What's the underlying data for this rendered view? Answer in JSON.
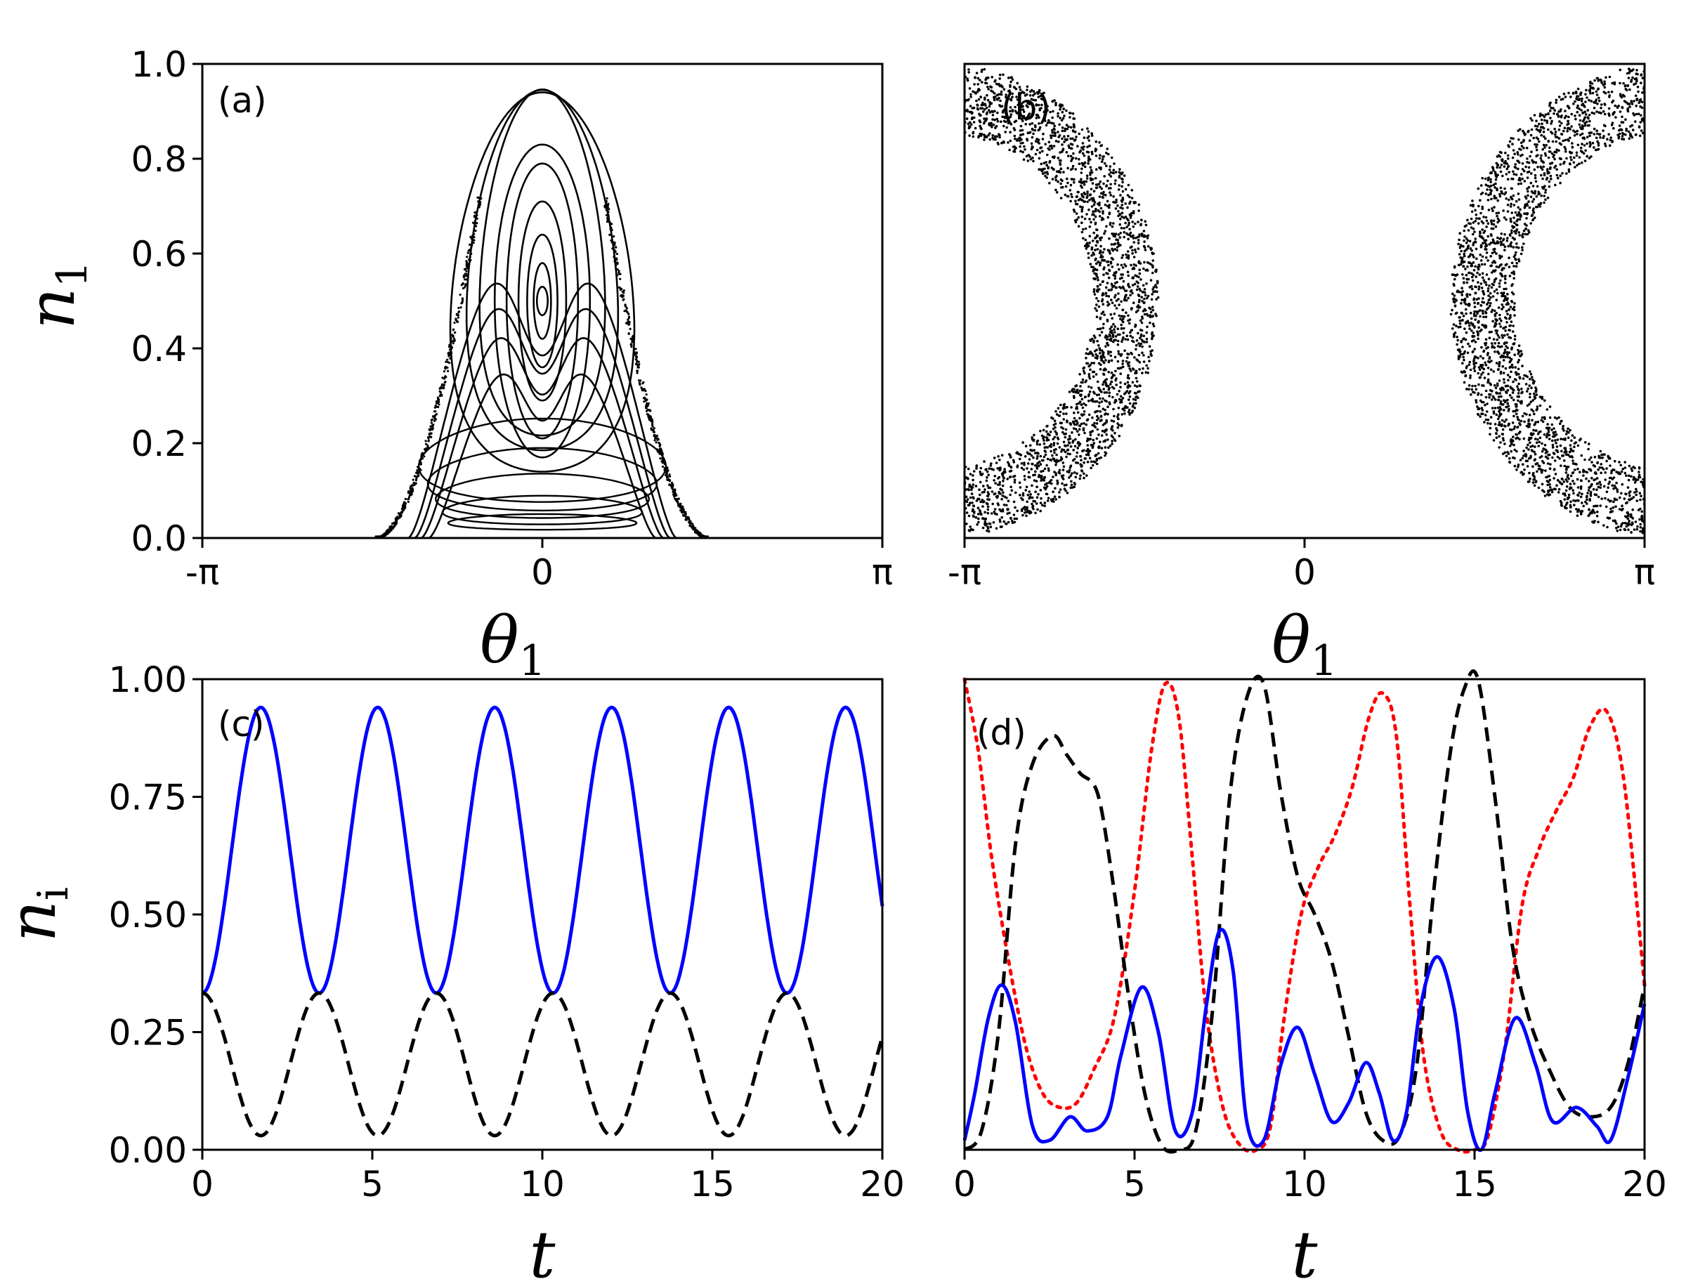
{
  "chart_data": [
    {
      "panel": "a",
      "label": "(a)",
      "type": "scatter",
      "description_kind": "poincare-section",
      "xlabel": "θ",
      "xlabel_sub": "1",
      "ylabel": "n",
      "ylabel_sub": "1",
      "xlim": [
        -3.1416,
        3.1416
      ],
      "ylim": [
        0,
        1
      ],
      "xticks": [
        "-π",
        "0",
        "π"
      ],
      "xtick_values": [
        -3.1416,
        0,
        3.1416
      ],
      "yticks": [
        "0.0",
        "0.2",
        "0.4",
        "0.6",
        "0.8",
        "1.0"
      ],
      "ytick_values": [
        0,
        0.2,
        0.4,
        0.6,
        0.8,
        1.0
      ],
      "color": "#000000",
      "orbits": [
        {
          "a": 0.05,
          "ctr": 0.5,
          "dy": 0.03
        },
        {
          "a": 0.08,
          "ctr": 0.5,
          "dy": 0.08
        },
        {
          "a": 0.14,
          "ctr": 0.5,
          "dy": 0.14
        },
        {
          "a": 0.22,
          "ctr": 0.5,
          "dy": 0.21
        },
        {
          "a": 0.33,
          "ctr": 0.5,
          "dy": 0.29
        },
        {
          "a": 0.44,
          "ctr": 0.5,
          "dy": 0.33
        },
        {
          "a": 0.58,
          "ctr": 0.49,
          "dy": 0.365
        },
        {
          "a": 0.7,
          "ctr": 0.47,
          "dy": 0.38
        },
        {
          "a": 0.85,
          "ctr": 0.44,
          "dy": 0.4
        }
      ],
      "separatrix_peaks": [
        {
          "peak": 0.45,
          "halfwidth": 1.05
        },
        {
          "peak": 0.55,
          "halfwidth": 1.12
        },
        {
          "peak": 0.63,
          "halfwidth": 1.18
        },
        {
          "peak": 0.7,
          "halfwidth": 1.24
        }
      ],
      "outer_envelope": {
        "peak": 0.72,
        "x_peak": 0.58,
        "x_end": 1.0
      }
    },
    {
      "panel": "b",
      "label": "(b)",
      "type": "scatter",
      "description_kind": "poincare-section-chaotic",
      "xlabel": "θ",
      "xlabel_sub": "1",
      "ylabel": "",
      "xlim": [
        -3.1416,
        3.1416
      ],
      "ylim": [
        0,
        1
      ],
      "xticks": [
        "-π",
        "0",
        "π"
      ],
      "xtick_values": [
        -3.1416,
        0,
        3.1416
      ],
      "yticks": [],
      "color": "#000000",
      "bands": [
        {
          "center_x": -3.4,
          "center_y": 0.5,
          "r_inner": 1.45,
          "r_outer": 2.05,
          "ry_scale": 0.245
        },
        {
          "center_x": 3.4,
          "center_y": 0.5,
          "r_inner": 1.45,
          "r_outer": 2.05,
          "ry_scale": 0.245
        }
      ]
    },
    {
      "panel": "c",
      "label": "(c)",
      "type": "line",
      "xlabel": "t",
      "ylabel": "n",
      "ylabel_sub": "i",
      "xlim": [
        0,
        20
      ],
      "ylim": [
        0,
        1
      ],
      "xticks": [
        "0",
        "5",
        "10",
        "15",
        "20"
      ],
      "xtick_values": [
        0,
        5,
        10,
        15,
        20
      ],
      "yticks": [
        "0.00",
        "0.25",
        "0.50",
        "0.75",
        "1.00"
      ],
      "ytick_values": [
        0,
        0.25,
        0.5,
        0.75,
        1.0
      ],
      "series": [
        {
          "style": "solid",
          "color": "#0000ff",
          "period": 3.44,
          "min": 0.333,
          "max": 0.94,
          "phase_start": "min"
        },
        {
          "style": "dashed",
          "color": "#000000",
          "period": 3.44,
          "min": 0.03,
          "max": 0.333,
          "phase_start": "max"
        }
      ]
    },
    {
      "panel": "d",
      "label": "(d)",
      "type": "line",
      "xlabel": "t",
      "ylabel": "",
      "xlim": [
        0,
        20
      ],
      "ylim": [
        0,
        1
      ],
      "xticks": [
        "0",
        "5",
        "10",
        "15",
        "20"
      ],
      "xtick_values": [
        0,
        5,
        10,
        15,
        20
      ],
      "yticks": [],
      "series": [
        {
          "style": "solid",
          "color": "#0000ff",
          "x": [
            0,
            0.3,
            0.7,
            1.1,
            1.5,
            2.0,
            2.5,
            3.1,
            3.6,
            4.2,
            4.6,
            5.2,
            5.7,
            6.2,
            6.7,
            7.1,
            7.5,
            7.9,
            8.3,
            8.8,
            9.3,
            9.8,
            10.3,
            10.8,
            11.3,
            11.8,
            12.2,
            12.6,
            13.0,
            13.4,
            13.9,
            14.4,
            14.8,
            15.2,
            15.6,
            16.2,
            16.8,
            17.3,
            18.0,
            18.6,
            19.0,
            19.5,
            20.0
          ],
          "y": [
            0.02,
            0.12,
            0.28,
            0.35,
            0.27,
            0.05,
            0.02,
            0.07,
            0.04,
            0.07,
            0.2,
            0.345,
            0.25,
            0.04,
            0.08,
            0.3,
            0.465,
            0.38,
            0.06,
            0.02,
            0.18,
            0.26,
            0.16,
            0.06,
            0.1,
            0.185,
            0.12,
            0.02,
            0.08,
            0.3,
            0.41,
            0.3,
            0.08,
            0.0,
            0.12,
            0.28,
            0.18,
            0.06,
            0.09,
            0.05,
            0.02,
            0.15,
            0.31
          ]
        },
        {
          "style": "dashed",
          "color": "#000000",
          "x": [
            0,
            0.5,
            1.0,
            1.5,
            2.0,
            2.6,
            3.0,
            3.4,
            3.9,
            4.3,
            4.8,
            5.3,
            5.8,
            6.3,
            6.8,
            7.3,
            7.8,
            8.3,
            8.8,
            9.3,
            9.8,
            10.3,
            10.8,
            11.3,
            11.8,
            12.3,
            12.8,
            13.3,
            13.8,
            14.3,
            14.7,
            15.1,
            15.6,
            16.1,
            16.6,
            17.2,
            17.8,
            18.4,
            19.0,
            19.5,
            20.0
          ],
          "y": [
            0.0,
            0.04,
            0.25,
            0.65,
            0.82,
            0.88,
            0.84,
            0.8,
            0.76,
            0.6,
            0.34,
            0.12,
            0.01,
            0.0,
            0.04,
            0.3,
            0.75,
            0.96,
            0.99,
            0.76,
            0.58,
            0.5,
            0.4,
            0.24,
            0.08,
            0.02,
            0.03,
            0.18,
            0.55,
            0.85,
            0.98,
            1.0,
            0.75,
            0.44,
            0.28,
            0.17,
            0.09,
            0.07,
            0.09,
            0.18,
            0.35
          ]
        },
        {
          "style": "dotted",
          "color": "#ff0000",
          "x": [
            0,
            0.4,
            0.8,
            1.3,
            1.8,
            2.3,
            2.8,
            3.3,
            3.8,
            4.4,
            5.0,
            5.5,
            5.9,
            6.3,
            6.7,
            7.1,
            7.6,
            8.1,
            8.6,
            9.0,
            9.4,
            9.9,
            10.4,
            10.9,
            11.4,
            11.9,
            12.3,
            12.7,
            13.1,
            13.5,
            14.0,
            14.5,
            15.0,
            15.4,
            15.9,
            16.4,
            16.9,
            17.4,
            17.9,
            18.4,
            18.9,
            19.4,
            20.0
          ],
          "y": [
            1.0,
            0.85,
            0.62,
            0.4,
            0.22,
            0.12,
            0.09,
            0.1,
            0.17,
            0.28,
            0.55,
            0.85,
            0.99,
            0.92,
            0.62,
            0.3,
            0.09,
            0.01,
            0.0,
            0.05,
            0.28,
            0.5,
            0.6,
            0.67,
            0.77,
            0.92,
            0.97,
            0.88,
            0.52,
            0.2,
            0.04,
            0.0,
            0.0,
            0.03,
            0.22,
            0.52,
            0.64,
            0.72,
            0.79,
            0.9,
            0.93,
            0.78,
            0.35
          ]
        }
      ]
    }
  ]
}
